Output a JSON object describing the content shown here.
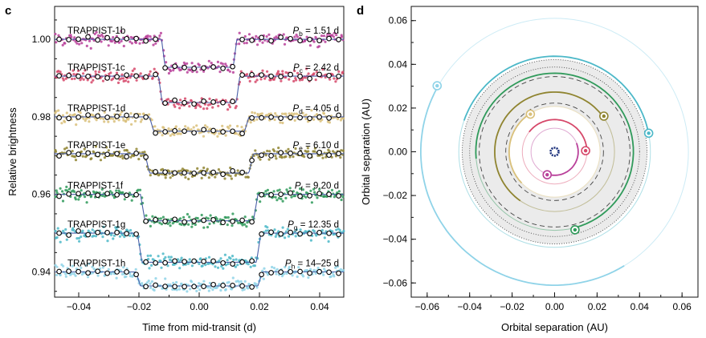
{
  "chart_data": [
    {
      "panel": "c",
      "type": "scatter",
      "xlabel": "Time from mid-transit (d)",
      "ylabel": "Relative brightness",
      "xlim": [
        -0.048,
        0.048
      ],
      "ylim": [
        0.9335,
        1.0085
      ],
      "xticks": [
        -0.04,
        -0.02,
        0.0,
        0.02,
        0.04
      ],
      "xtick_labels": [
        "−0.04",
        "−0.02",
        "0.00",
        "0.02",
        "0.04"
      ],
      "yticks": [
        0.94,
        0.96,
        0.98,
        1.0
      ],
      "ytick_labels": [
        "0.94",
        "0.96",
        "0.98",
        "1.00"
      ],
      "grid": false,
      "series": [
        {
          "name": "TRAPPIST-1b",
          "period_sym": "P",
          "period_sub": "b",
          "period_val": " = 1.51 d",
          "color": "#b9409a",
          "baseline": 1.0,
          "depth": 0.0072,
          "half_duration": 0.0125,
          "ingress": 0.0012
        },
        {
          "name": "TRAPPIST-1c",
          "period_sym": "P",
          "period_sub": "c",
          "period_val": " = 2.42 d",
          "color": "#d6486a",
          "baseline": 0.9905,
          "depth": 0.0068,
          "half_duration": 0.0135,
          "ingress": 0.0012
        },
        {
          "name": "TRAPPIST-1d",
          "period_sym": "P",
          "period_sub": "d",
          "period_val": " = 4.05 d",
          "color": "#d9c07a",
          "baseline": 0.98,
          "depth": 0.0037,
          "half_duration": 0.0165,
          "ingress": 0.0014
        },
        {
          "name": "TRAPPIST-1e",
          "period_sym": "P",
          "period_sub": "e",
          "period_val": " = 6.10 d",
          "color": "#8f8430",
          "baseline": 0.9705,
          "depth": 0.005,
          "half_duration": 0.018,
          "ingress": 0.0015
        },
        {
          "name": "TRAPPIST-1f",
          "period_sym": "P",
          "period_sub": "f",
          "period_val": " = 9.20 d",
          "color": "#2f9a5a",
          "baseline": 0.96,
          "depth": 0.0068,
          "half_duration": 0.0195,
          "ingress": 0.0015
        },
        {
          "name": "TRAPPIST-1g",
          "period_sym": "P",
          "period_sub": "g",
          "period_val": " = 12.35 d",
          "color": "#4cb8c8",
          "baseline": 0.95,
          "depth": 0.0075,
          "half_duration": 0.0205,
          "ingress": 0.0015
        },
        {
          "name": "TRAPPIST-1h",
          "period_sym": "P",
          "period_sub": "h",
          "period_val": " = 14–25 d",
          "color": "#8fd3e8",
          "baseline": 0.94,
          "depth": 0.0036,
          "half_duration": 0.021,
          "ingress": 0.0015
        }
      ]
    },
    {
      "panel": "d",
      "type": "scatter",
      "xlabel": "Orbital separation (AU)",
      "ylabel": "Orbital separation (AU)",
      "xlim": [
        -0.0675,
        0.0675
      ],
      "ylim": [
        -0.0665,
        0.0665
      ],
      "xticks": [
        -0.06,
        -0.04,
        -0.02,
        0.0,
        0.02,
        0.04,
        0.06
      ],
      "xtick_labels": [
        "−0.06",
        "−0.04",
        "−0.02",
        "0.00",
        "0.02",
        "0.04",
        "0.06"
      ],
      "yticks": [
        -0.06,
        -0.04,
        -0.02,
        0.0,
        0.02,
        0.04,
        0.06
      ],
      "ytick_labels": [
        "−0.06",
        "−0.04",
        "−0.02",
        "0.00",
        "0.02",
        "0.04",
        "0.06"
      ],
      "grid": false,
      "habitable_zone": {
        "inner": 0.0215,
        "outer": 0.0435,
        "color": "#ebebeb"
      },
      "boundary_circles": [
        {
          "radius": 0.0435,
          "style": "dotted"
        },
        {
          "radius": 0.04,
          "style": "dotted"
        },
        {
          "radius": 0.0355,
          "style": "dashed"
        },
        {
          "radius": 0.023,
          "style": "dashed"
        }
      ],
      "planets": [
        {
          "name": "b",
          "semi_major_axis": 0.0111,
          "planet_x": -0.0035,
          "planet_y": -0.0105,
          "trail_ccw_deg": 130,
          "color": "#b9409a"
        },
        {
          "name": "c",
          "semi_major_axis": 0.0152,
          "planet_x": 0.0146,
          "planet_y": 0.0005,
          "trail_ccw_deg": 140,
          "color": "#d6486a"
        },
        {
          "name": "d",
          "semi_major_axis": 0.0214,
          "planet_x": -0.0114,
          "planet_y": 0.0172,
          "trail_ccw_deg": 100,
          "color": "#d9c07a"
        },
        {
          "name": "e",
          "semi_major_axis": 0.0282,
          "planet_x": 0.0232,
          "planet_y": 0.0163,
          "trail_ccw_deg": 200,
          "color": "#8f8430"
        },
        {
          "name": "f",
          "semi_major_axis": 0.0371,
          "planet_x": 0.0096,
          "planet_y": -0.0357,
          "trail_ccw_deg": 260,
          "color": "#2f9a5a"
        },
        {
          "name": "g",
          "semi_major_axis": 0.0451,
          "planet_x": 0.0443,
          "planet_y": 0.0085,
          "trail_ccw_deg": 150,
          "color": "#4cb8c8"
        },
        {
          "name": "h",
          "semi_major_axis": 0.063,
          "planet_x": -0.0553,
          "planet_y": 0.0302,
          "trail_ccw_deg": 150,
          "color": "#8fd3e8"
        }
      ],
      "star": {
        "x": 0.0,
        "y": 0.0,
        "color": "#1a2f7a"
      }
    }
  ],
  "panel_labels": {
    "c": "c",
    "d": "d"
  }
}
